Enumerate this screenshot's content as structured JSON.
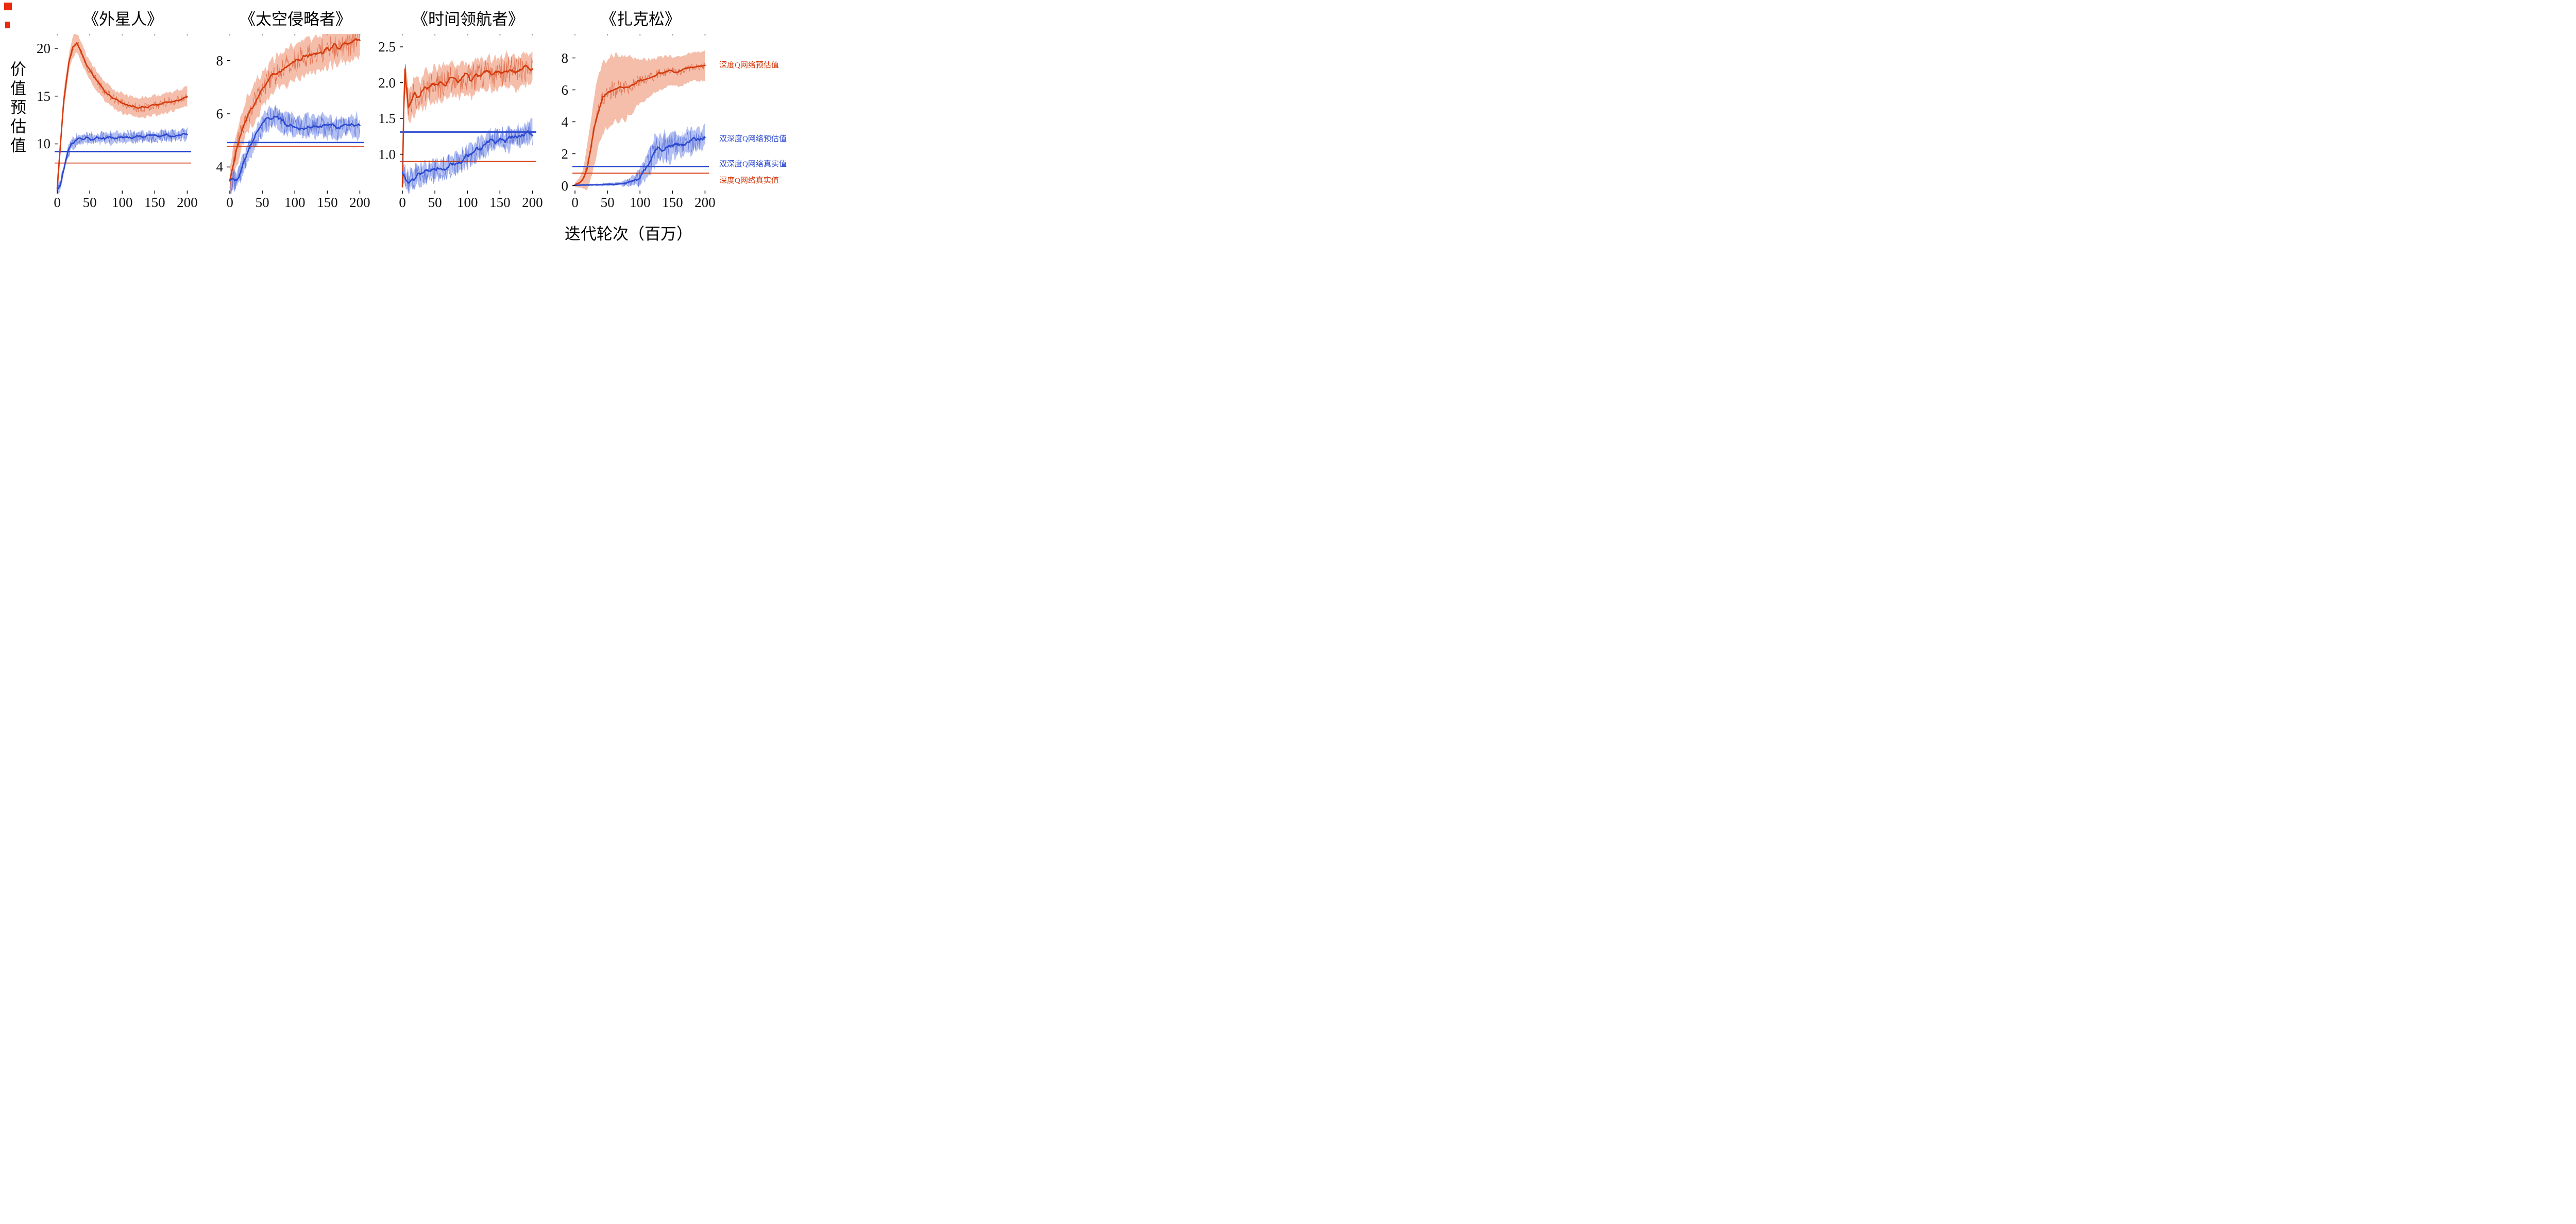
{
  "figure": {
    "ylabel": "价值预估值",
    "xlabel": "迭代轮次（百万）",
    "legend": [
      {
        "label": "深度Q网络预估值",
        "color": "#d43a0d"
      },
      {
        "label": "双深度Q网络预估值",
        "color": "#2c49cf"
      },
      {
        "label": "双深度Q网络真实值",
        "color": "#2c49cf"
      },
      {
        "label": "深度Q网络真实值",
        "color": "#d43a0d"
      }
    ]
  },
  "colors": {
    "dqn": "#d43a0d",
    "dqn_band": "rgba(233,126,87,0.5)",
    "ddqn": "#2c49cf",
    "ddqn_band": "rgba(116,140,230,0.55)"
  },
  "chart_data": [
    {
      "type": "line",
      "title": "《外星人》",
      "xlim": [
        -4,
        206
      ],
      "ylim": [
        4.8,
        21.5
      ],
      "xticks": [
        0,
        50,
        100,
        150,
        200
      ],
      "yticks": [
        10,
        15,
        20
      ],
      "ydecimals": 0,
      "series": [
        {
          "name": "深度Q网络预估值",
          "color": "#d43a0d",
          "band_color": "rgba(233,126,87,0.5)",
          "seed": 11,
          "keypoints": [
            [
              0,
              5.3
            ],
            [
              4,
              9
            ],
            [
              10,
              14.5
            ],
            [
              18,
              18.5
            ],
            [
              24,
              20.2
            ],
            [
              30,
              20.6
            ],
            [
              36,
              19.8
            ],
            [
              45,
              18.3
            ],
            [
              55,
              17.2
            ],
            [
              65,
              16.2
            ],
            [
              75,
              15.4
            ],
            [
              85,
              14.8
            ],
            [
              95,
              14.4
            ],
            [
              110,
              14.0
            ],
            [
              125,
              13.8
            ],
            [
              140,
              13.9
            ],
            [
              155,
              14.1
            ],
            [
              170,
              14.4
            ],
            [
              185,
              14.6
            ],
            [
              200,
              15.0
            ]
          ],
          "band": 1.0,
          "noise": 0.32
        },
        {
          "name": "双深度Q网络预估值",
          "color": "#2c49cf",
          "band_color": "rgba(116,140,230,0.55)",
          "seed": 12,
          "keypoints": [
            [
              0,
              5.2
            ],
            [
              5,
              5.8
            ],
            [
              10,
              7.2
            ],
            [
              16,
              9.0
            ],
            [
              22,
              10.0
            ],
            [
              28,
              10.4
            ],
            [
              36,
              10.5
            ],
            [
              50,
              10.6
            ],
            [
              70,
              10.6
            ],
            [
              90,
              10.7
            ],
            [
              110,
              10.7
            ],
            [
              130,
              10.8
            ],
            [
              150,
              10.8
            ],
            [
              170,
              10.9
            ],
            [
              185,
              10.9
            ],
            [
              200,
              11.0
            ]
          ],
          "band": 0.5,
          "noise": 0.5
        }
      ],
      "hlines": [
        {
          "name": "双深度Q网络真实值",
          "value": 9.2,
          "color": "#2c49cf",
          "width": 2.6
        },
        {
          "name": "深度Q网络真实值",
          "value": 8.0,
          "color": "#d43a0d",
          "width": 1.8
        }
      ]
    },
    {
      "type": "line",
      "title": "《太空侵略者》",
      "xlim": [
        -4,
        206
      ],
      "ylim": [
        3.0,
        9.0
      ],
      "xticks": [
        0,
        50,
        100,
        150,
        200
      ],
      "yticks": [
        4,
        6,
        8
      ],
      "ydecimals": 0,
      "series": [
        {
          "name": "深度Q网络预估值",
          "color": "#d43a0d",
          "band_color": "rgba(233,126,87,0.5)",
          "seed": 21,
          "keypoints": [
            [
              0,
              3.4
            ],
            [
              5,
              4.0
            ],
            [
              10,
              4.6
            ],
            [
              16,
              5.2
            ],
            [
              24,
              5.8
            ],
            [
              32,
              6.2
            ],
            [
              42,
              6.6
            ],
            [
              52,
              7.0
            ],
            [
              62,
              7.3
            ],
            [
              75,
              7.6
            ],
            [
              88,
              7.8
            ],
            [
              100,
              7.95
            ],
            [
              112,
              8.1
            ],
            [
              125,
              8.2
            ],
            [
              140,
              8.35
            ],
            [
              155,
              8.45
            ],
            [
              170,
              8.55
            ],
            [
              182,
              8.6
            ],
            [
              192,
              8.7
            ],
            [
              200,
              8.8
            ]
          ],
          "band": 0.65,
          "noise": 0.3
        },
        {
          "name": "双深度Q网络预估值",
          "color": "#2c49cf",
          "band_color": "rgba(116,140,230,0.55)",
          "seed": 22,
          "keypoints": [
            [
              0,
              3.4
            ],
            [
              8,
              3.5
            ],
            [
              16,
              3.8
            ],
            [
              24,
              4.3
            ],
            [
              32,
              4.8
            ],
            [
              40,
              5.2
            ],
            [
              48,
              5.5
            ],
            [
              56,
              5.75
            ],
            [
              64,
              5.9
            ],
            [
              72,
              5.85
            ],
            [
              82,
              5.7
            ],
            [
              92,
              5.6
            ],
            [
              105,
              5.5
            ],
            [
              120,
              5.55
            ],
            [
              135,
              5.5
            ],
            [
              150,
              5.55
            ],
            [
              165,
              5.45
            ],
            [
              180,
              5.55
            ],
            [
              200,
              5.5
            ]
          ],
          "band": 0.38,
          "noise": 0.3
        }
      ],
      "hlines": [
        {
          "name": "双深度Q网络真实值",
          "value": 4.92,
          "color": "#2c49cf",
          "width": 2.6
        },
        {
          "name": "深度Q网络真实值",
          "value": 4.78,
          "color": "#d43a0d",
          "width": 1.8
        }
      ]
    },
    {
      "type": "line",
      "title": "《时间领航者》",
      "xlim": [
        -4,
        206
      ],
      "ylim": [
        0.45,
        2.68
      ],
      "xticks": [
        0,
        50,
        100,
        150,
        200
      ],
      "yticks": [
        1.0,
        1.5,
        2.0,
        2.5
      ],
      "ydecimals": 1,
      "series": [
        {
          "name": "深度Q网络预估值",
          "color": "#d43a0d",
          "band_color": "rgba(233,126,87,0.5)",
          "seed": 31,
          "keypoints": [
            [
              0,
              0.6
            ],
            [
              2,
              1.6
            ],
            [
              4,
              2.2
            ],
            [
              6,
              1.95
            ],
            [
              9,
              1.65
            ],
            [
              13,
              1.72
            ],
            [
              18,
              1.82
            ],
            [
              24,
              1.78
            ],
            [
              30,
              1.88
            ],
            [
              38,
              1.92
            ],
            [
              46,
              1.98
            ],
            [
              55,
              1.95
            ],
            [
              65,
              2.0
            ],
            [
              75,
              2.05
            ],
            [
              85,
              2.02
            ],
            [
              95,
              2.08
            ],
            [
              105,
              2.05
            ],
            [
              115,
              2.1
            ],
            [
              125,
              2.12
            ],
            [
              135,
              2.15
            ],
            [
              145,
              2.1
            ],
            [
              155,
              2.15
            ],
            [
              165,
              2.18
            ],
            [
              175,
              2.15
            ],
            [
              185,
              2.2
            ],
            [
              200,
              2.2
            ]
          ],
          "band": 0.22,
          "noise": 0.13
        },
        {
          "name": "双深度Q网络预估值",
          "color": "#2c49cf",
          "band_color": "rgba(116,140,230,0.55)",
          "seed": 32,
          "keypoints": [
            [
              0,
              0.75
            ],
            [
              5,
              0.65
            ],
            [
              10,
              0.62
            ],
            [
              16,
              0.66
            ],
            [
              24,
              0.7
            ],
            [
              32,
              0.72
            ],
            [
              40,
              0.74
            ],
            [
              50,
              0.77
            ],
            [
              60,
              0.8
            ],
            [
              70,
              0.84
            ],
            [
              80,
              0.88
            ],
            [
              90,
              0.92
            ],
            [
              100,
              0.97
            ],
            [
              110,
              1.02
            ],
            [
              120,
              1.08
            ],
            [
              130,
              1.14
            ],
            [
              140,
              1.2
            ],
            [
              150,
              1.22
            ],
            [
              158,
              1.18
            ],
            [
              166,
              1.24
            ],
            [
              175,
              1.27
            ],
            [
              185,
              1.26
            ],
            [
              193,
              1.3
            ],
            [
              200,
              1.3
            ]
          ],
          "band": 0.12,
          "noise": 0.13
        }
      ],
      "hlines": [
        {
          "name": "双深度Q网络真实值",
          "value": 1.31,
          "color": "#2c49cf",
          "width": 2.8
        },
        {
          "name": "深度Q网络真实值",
          "value": 0.9,
          "color": "#d43a0d",
          "width": 1.8
        }
      ]
    },
    {
      "type": "line",
      "title": "《扎克松》",
      "xlim": [
        -4,
        206
      ],
      "ylim": [
        -0.5,
        9.5
      ],
      "xticks": [
        0,
        50,
        100,
        150,
        200
      ],
      "yticks": [
        0,
        2,
        4,
        6,
        8
      ],
      "ydecimals": 0,
      "series": [
        {
          "name": "深度Q网络预估值",
          "color": "#d43a0d",
          "band_color": "rgba(233,126,87,0.5)",
          "seed": 41,
          "keypoints": [
            [
              0,
              0.05
            ],
            [
              6,
              0.15
            ],
            [
              12,
              0.4
            ],
            [
              18,
              1.0
            ],
            [
              24,
              2.2
            ],
            [
              30,
              3.6
            ],
            [
              36,
              4.7
            ],
            [
              42,
              5.4
            ],
            [
              50,
              5.8
            ],
            [
              58,
              6.0
            ],
            [
              68,
              6.1
            ],
            [
              78,
              6.2
            ],
            [
              88,
              6.3
            ],
            [
              98,
              6.5
            ],
            [
              108,
              6.6
            ],
            [
              118,
              6.8
            ],
            [
              128,
              7.0
            ],
            [
              138,
              7.1
            ],
            [
              148,
              7.2
            ],
            [
              158,
              7.1
            ],
            [
              168,
              7.3
            ],
            [
              178,
              7.4
            ],
            [
              188,
              7.45
            ],
            [
              200,
              7.5
            ]
          ],
          "band": [
            [
              0,
              0.1
            ],
            [
              12,
              0.5
            ],
            [
              20,
              1.6
            ],
            [
              30,
              2.2
            ],
            [
              45,
              2.3
            ],
            [
              60,
              2.1
            ],
            [
              80,
              1.9
            ],
            [
              100,
              1.4
            ],
            [
              120,
              1.1
            ],
            [
              140,
              0.95
            ],
            [
              200,
              0.9
            ]
          ],
          "noise": 0.42
        },
        {
          "name": "双深度Q网络预估值",
          "color": "#2c49cf",
          "band_color": "rgba(116,140,230,0.55)",
          "seed": 42,
          "keypoints": [
            [
              0,
              0.02
            ],
            [
              20,
              0.04
            ],
            [
              40,
              0.06
            ],
            [
              60,
              0.1
            ],
            [
              75,
              0.15
            ],
            [
              88,
              0.25
            ],
            [
              98,
              0.45
            ],
            [
              106,
              0.8
            ],
            [
              113,
              1.3
            ],
            [
              120,
              1.9
            ],
            [
              127,
              2.3
            ],
            [
              134,
              2.45
            ],
            [
              141,
              2.3
            ],
            [
              148,
              2.55
            ],
            [
              155,
              2.65
            ],
            [
              162,
              2.5
            ],
            [
              170,
              2.75
            ],
            [
              178,
              2.8
            ],
            [
              186,
              2.85
            ],
            [
              193,
              2.9
            ],
            [
              200,
              3.0
            ]
          ],
          "band": [
            [
              0,
              0.03
            ],
            [
              70,
              0.1
            ],
            [
              90,
              0.3
            ],
            [
              105,
              0.7
            ],
            [
              120,
              0.9
            ],
            [
              140,
              0.85
            ],
            [
              160,
              0.7
            ],
            [
              200,
              0.6
            ]
          ],
          "noise": 0.65
        }
      ],
      "hlines": [
        {
          "name": "双深度Q网络真实值",
          "value": 1.2,
          "color": "#2c49cf",
          "width": 2.6
        },
        {
          "name": "深度Q网络真实值",
          "value": 0.78,
          "color": "#d43a0d",
          "width": 1.8
        }
      ]
    }
  ]
}
